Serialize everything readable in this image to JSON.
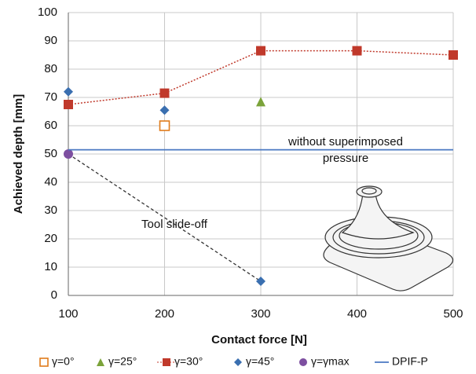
{
  "chart_data": {
    "type": "scatter",
    "x_label": "Contact force [N]",
    "y_label": "Achieved depth [mm]",
    "xlim": [
      100,
      500
    ],
    "xticks": [
      100,
      200,
      300,
      400,
      500
    ],
    "ylim": [
      0,
      100
    ],
    "yticks": [
      0,
      10,
      20,
      30,
      40,
      50,
      60,
      70,
      80,
      90,
      100
    ],
    "grid": true,
    "legend": "bottom",
    "annotations": {
      "pressure": [
        "without superimposed",
        "pressure"
      ],
      "slide_off": "Tool slide-off"
    },
    "series": [
      {
        "name": "γ=0°",
        "color": "#e07b1a",
        "marker": "square-open",
        "line": "none",
        "x": [
          200
        ],
        "values": [
          60
        ]
      },
      {
        "name": "γ=25°",
        "color": "#7ba33a",
        "marker": "triangle",
        "line": "none",
        "x": [
          300
        ],
        "values": [
          68.5
        ]
      },
      {
        "name": "γ=30°",
        "color": "#c0392b",
        "marker": "square",
        "line": "dotted",
        "x": [
          100,
          200,
          300,
          400,
          500
        ],
        "values": [
          67.5,
          71.5,
          86.5,
          86.5,
          85
        ]
      },
      {
        "name": "γ=45°",
        "color": "#3a6fb0",
        "marker": "diamond",
        "line": "none",
        "x": [
          100,
          200,
          300
        ],
        "values": [
          72,
          65.5,
          5
        ]
      },
      {
        "name": "γ=γmax",
        "color": "#7d4fa0",
        "marker": "circle",
        "line": "none",
        "x": [
          100
        ],
        "values": [
          50
        ]
      },
      {
        "name": "DPIF-P",
        "color": "#4a78c2",
        "marker": "none",
        "line": "solid",
        "x": [
          100,
          500
        ],
        "values": [
          51.5,
          51.5
        ]
      }
    ]
  }
}
